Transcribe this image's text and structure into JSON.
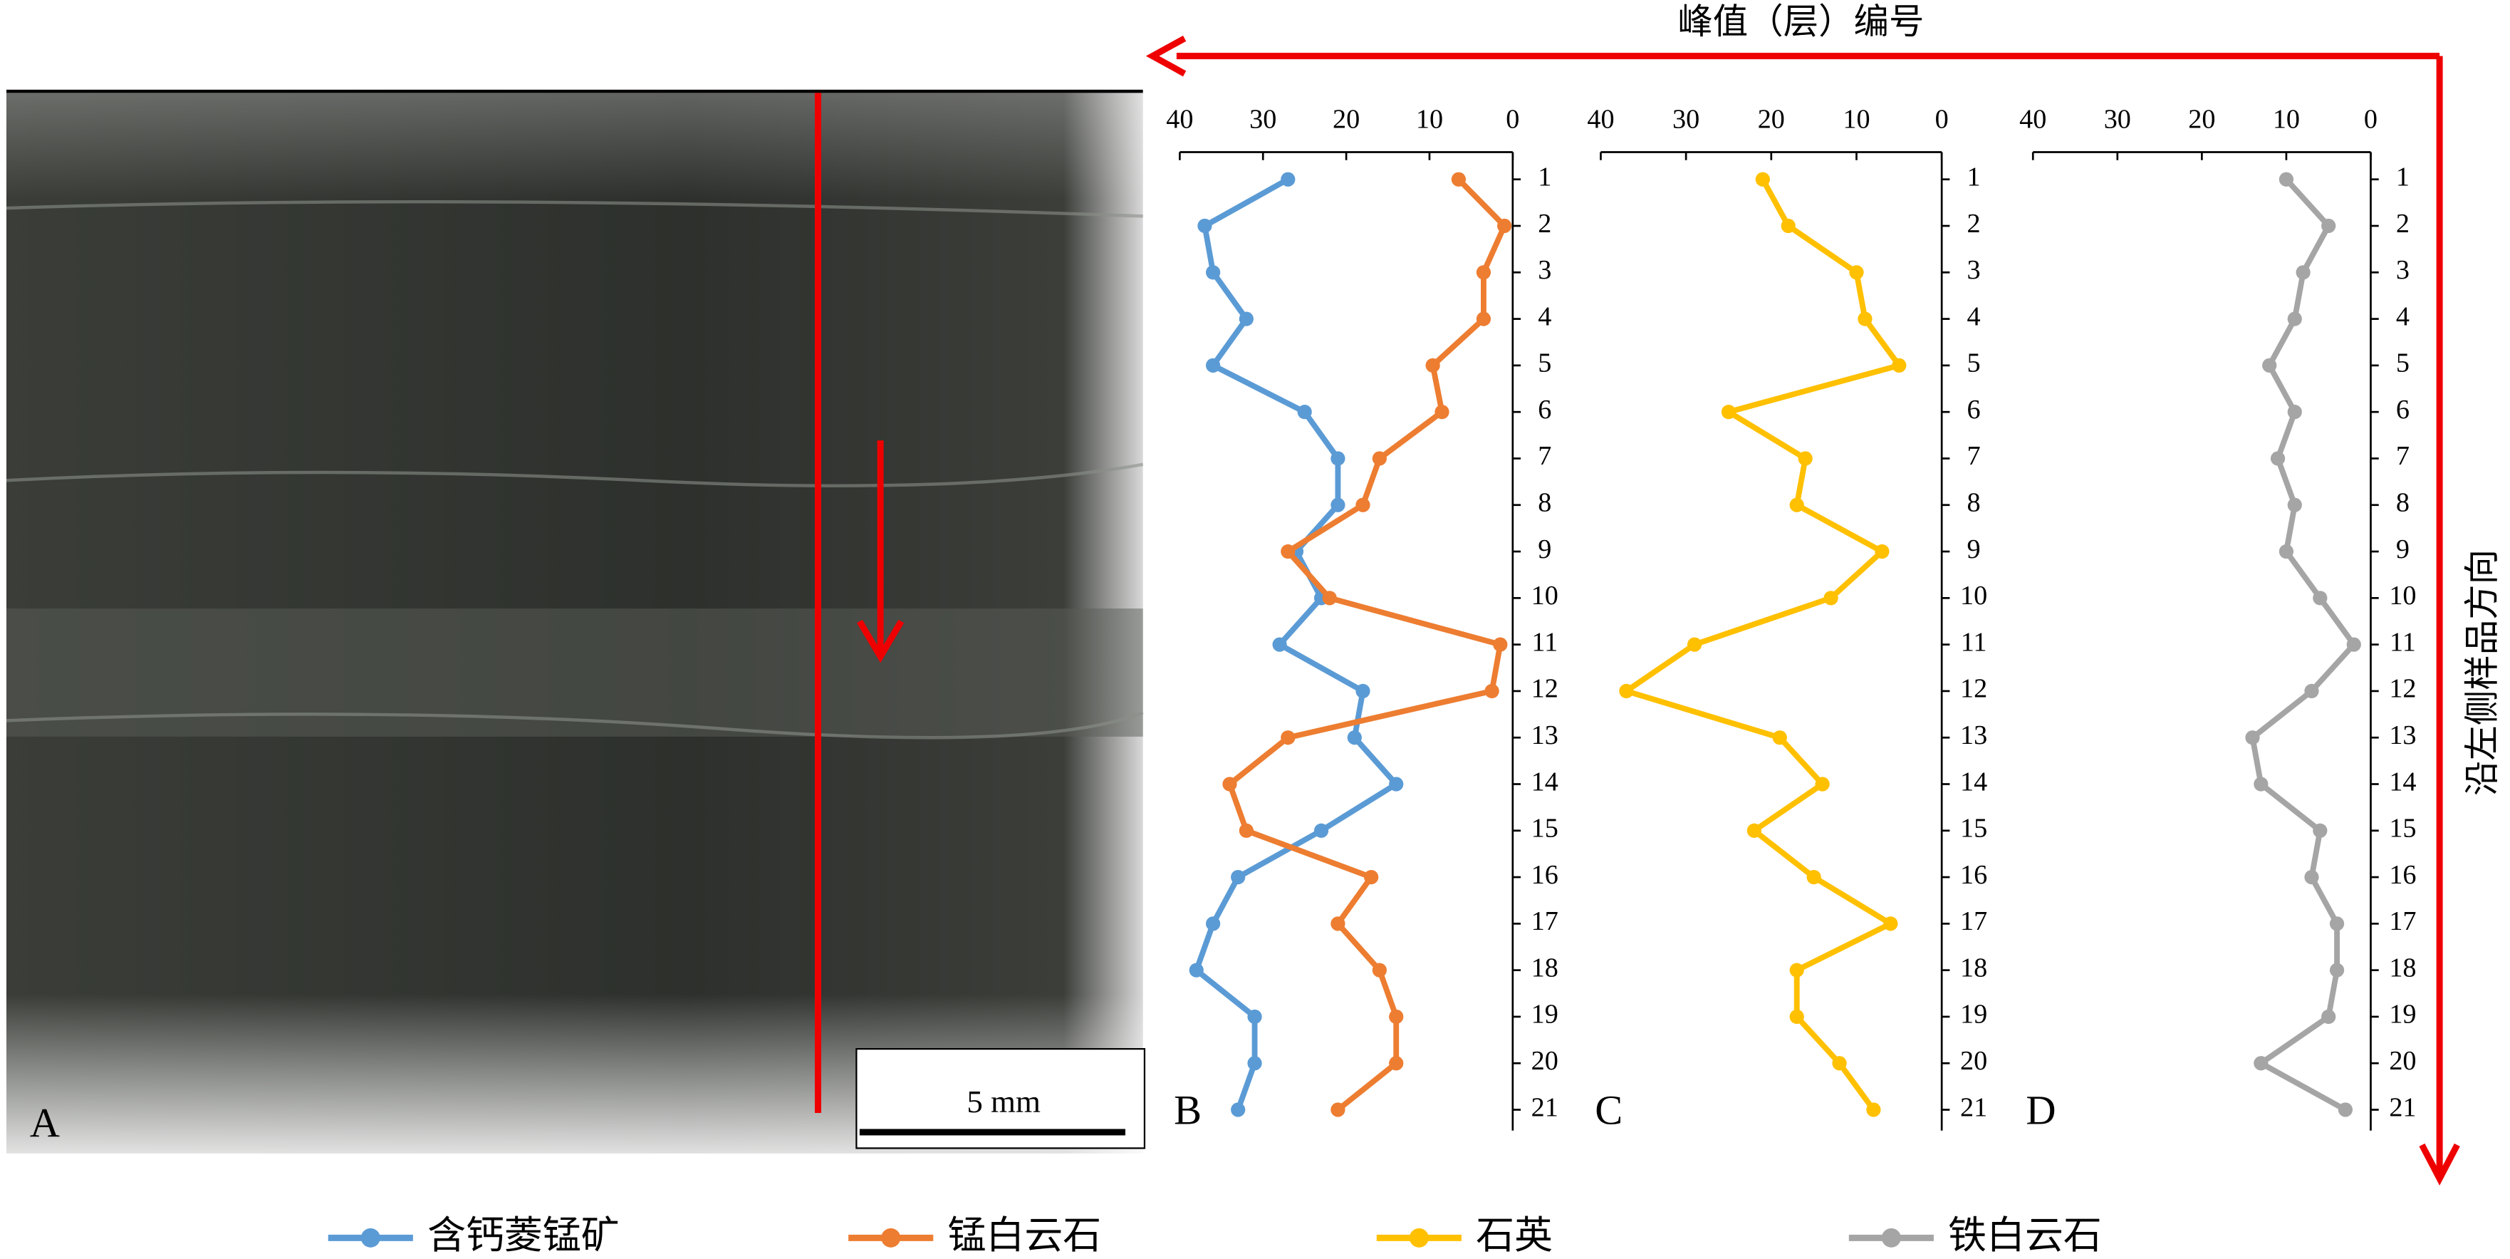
{
  "title": "峰值（层）编号",
  "side_label": "沿左侧样品方向",
  "photo": {
    "label": "A",
    "scale_bar": "5 mm"
  },
  "chart_data": [
    {
      "type": "line",
      "label": "B",
      "xlim": [
        40,
        0
      ],
      "xticks": [
        40,
        30,
        20,
        10,
        0
      ],
      "categories": [
        1,
        2,
        3,
        4,
        5,
        6,
        7,
        8,
        9,
        10,
        11,
        12,
        13,
        14,
        15,
        16,
        17,
        18,
        19,
        20,
        21
      ],
      "series": [
        {
          "name": "含钙菱锰矿",
          "color": "#5b9bd5",
          "values": [
            27,
            37,
            36,
            32,
            36,
            25,
            21,
            21,
            26,
            23,
            28,
            18,
            19,
            14,
            23,
            33,
            36,
            38,
            31,
            31,
            33
          ]
        },
        {
          "name": "锰白云石",
          "color": "#ed7d31",
          "values": [
            6.5,
            1,
            3.5,
            3.5,
            9.6,
            8.5,
            16,
            18,
            27,
            22,
            1.5,
            2.5,
            27,
            34,
            32,
            17,
            21,
            16,
            14,
            14,
            21
          ]
        }
      ]
    },
    {
      "type": "line",
      "label": "C",
      "xlim": [
        40,
        0
      ],
      "xticks": [
        40,
        30,
        20,
        10,
        0
      ],
      "categories": [
        1,
        2,
        3,
        4,
        5,
        6,
        7,
        8,
        9,
        10,
        11,
        12,
        13,
        14,
        15,
        16,
        17,
        18,
        19,
        20,
        21
      ],
      "series": [
        {
          "name": "石英",
          "color": "#ffc000",
          "values": [
            21,
            18,
            10,
            9,
            5,
            25,
            16,
            17,
            7,
            13,
            29,
            37,
            19,
            14,
            22,
            15,
            6,
            17,
            17,
            12,
            8
          ]
        }
      ]
    },
    {
      "type": "line",
      "label": "D",
      "xlim": [
        40,
        0
      ],
      "xticks": [
        40,
        30,
        20,
        10,
        0
      ],
      "categories": [
        1,
        2,
        3,
        4,
        5,
        6,
        7,
        8,
        9,
        10,
        11,
        12,
        13,
        14,
        15,
        16,
        17,
        18,
        19,
        20,
        21
      ],
      "series": [
        {
          "name": "铁白云石",
          "color": "#a5a5a5",
          "values": [
            10,
            5,
            8,
            9,
            12,
            9,
            11,
            9,
            10,
            6,
            2,
            7,
            14,
            13,
            6,
            7,
            4,
            4,
            5,
            13,
            3
          ]
        }
      ]
    }
  ]
}
